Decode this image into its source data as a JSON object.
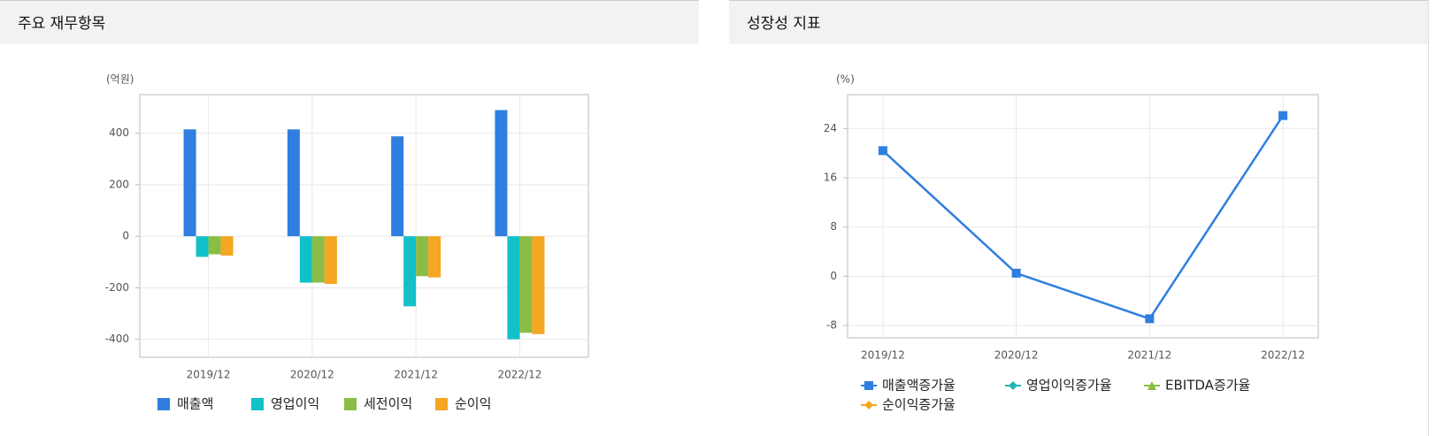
{
  "chart_data": [
    {
      "type": "bar",
      "title": "주요 재무항목",
      "ylabel": "(억원)",
      "categories": [
        "2019/12",
        "2020/12",
        "2021/12",
        "2022/12"
      ],
      "series": [
        {
          "name": "매출액",
          "color": "#2f7ee0",
          "values": [
            415,
            415,
            388,
            490
          ]
        },
        {
          "name": "영업이익",
          "color": "#12c0c8",
          "values": [
            -80,
            -180,
            -272,
            -400
          ]
        },
        {
          "name": "세전이익",
          "color": "#8bbd44",
          "values": [
            -70,
            -180,
            -155,
            -375
          ]
        },
        {
          "name": "순이익",
          "color": "#f5a623",
          "values": [
            -75,
            -185,
            -160,
            -380
          ]
        }
      ],
      "ylim": [
        -470,
        550
      ],
      "yticks": [
        -400,
        -200,
        0,
        200,
        400
      ],
      "grid": true,
      "legend": "bottom"
    },
    {
      "type": "line",
      "title": "성장성 지표",
      "ylabel": "(%)",
      "categories": [
        "2019/12",
        "2020/12",
        "2021/12",
        "2022/12"
      ],
      "series": [
        {
          "name": "매출액증가율",
          "color": "#2f7ee0",
          "marker": "square",
          "values": [
            20.4,
            0.5,
            -6.9,
            26.1
          ]
        },
        {
          "name": "영업이익증가율",
          "color": "#1fb5b5",
          "marker": "diamond",
          "values": [
            null,
            null,
            null,
            null
          ]
        },
        {
          "name": "EBITDA증가율",
          "color": "#8bbd44",
          "marker": "triangle",
          "values": [
            null,
            null,
            null,
            null
          ]
        },
        {
          "name": "순이익증가율",
          "color": "#f5a623",
          "marker": "diamond",
          "values": [
            null,
            null,
            null,
            null
          ]
        }
      ],
      "ylim": [
        -10,
        29.5
      ],
      "yticks": [
        -8,
        0,
        8,
        16,
        24
      ],
      "grid": true,
      "legend": "bottom"
    }
  ]
}
